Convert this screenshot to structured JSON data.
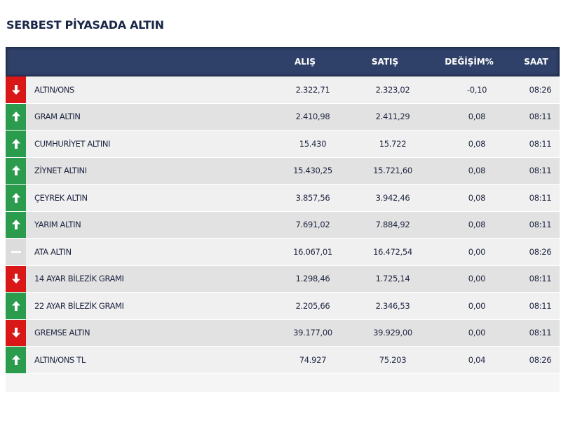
{
  "title": "SERBEST PİYASADA ALTIN",
  "table": {
    "headers": {
      "name": "",
      "alis": "ALIŞ",
      "satis": "SATIŞ",
      "degisim": "DEĞİŞİM%",
      "saat": "SAAT"
    },
    "colors": {
      "header_bg": "#2f4169",
      "down": "#d91717",
      "up": "#2b9b4d",
      "flat": "#dcdcdc"
    },
    "rows": [
      {
        "trend": "down",
        "icon": "arrow-down-icon",
        "name": "ALTIN/ONS",
        "alis": "2.322,71",
        "satis": "2.323,02",
        "degisim": "-0,10",
        "saat": "08:26"
      },
      {
        "trend": "up",
        "icon": "arrow-up-icon",
        "name": "GRAM ALTIN",
        "alis": "2.410,98",
        "satis": "2.411,29",
        "degisim": "0,08",
        "saat": "08:11"
      },
      {
        "trend": "up",
        "icon": "arrow-up-icon",
        "name": "CUMHURİYET ALTINI",
        "alis": "15.430",
        "satis": "15.722",
        "degisim": "0,08",
        "saat": "08:11"
      },
      {
        "trend": "up",
        "icon": "arrow-up-icon",
        "name": "ZİYNET ALTINI",
        "alis": "15.430,25",
        "satis": "15.721,60",
        "degisim": "0,08",
        "saat": "08:11"
      },
      {
        "trend": "up",
        "icon": "arrow-up-icon",
        "name": "ÇEYREK ALTIN",
        "alis": "3.857,56",
        "satis": "3.942,46",
        "degisim": "0,08",
        "saat": "08:11"
      },
      {
        "trend": "up",
        "icon": "arrow-up-icon",
        "name": "YARIM ALTIN",
        "alis": "7.691,02",
        "satis": "7.884,92",
        "degisim": "0,08",
        "saat": "08:11"
      },
      {
        "trend": "flat",
        "icon": "dash-icon",
        "name": "ATA ALTIN",
        "alis": "16.067,01",
        "satis": "16.472,54",
        "degisim": "0,00",
        "saat": "08:26"
      },
      {
        "trend": "down",
        "icon": "arrow-down-icon",
        "name": "14 AYAR BİLEZİK GRAMI",
        "alis": "1.298,46",
        "satis": "1.725,14",
        "degisim": "0,00",
        "saat": "08:11"
      },
      {
        "trend": "up",
        "icon": "arrow-up-icon",
        "name": "22 AYAR BİLEZİK GRAMI",
        "alis": "2.205,66",
        "satis": "2.346,53",
        "degisim": "0,00",
        "saat": "08:11"
      },
      {
        "trend": "down",
        "icon": "arrow-down-icon",
        "name": "GREMSE ALTIN",
        "alis": "39.177,00",
        "satis": "39.929,00",
        "degisim": "0,00",
        "saat": "08:11"
      },
      {
        "trend": "up",
        "icon": "arrow-up-icon",
        "name": "ALTIN/ONS TL",
        "alis": "74.927",
        "satis": "75.203",
        "degisim": "0,04",
        "saat": "08:26"
      }
    ]
  }
}
